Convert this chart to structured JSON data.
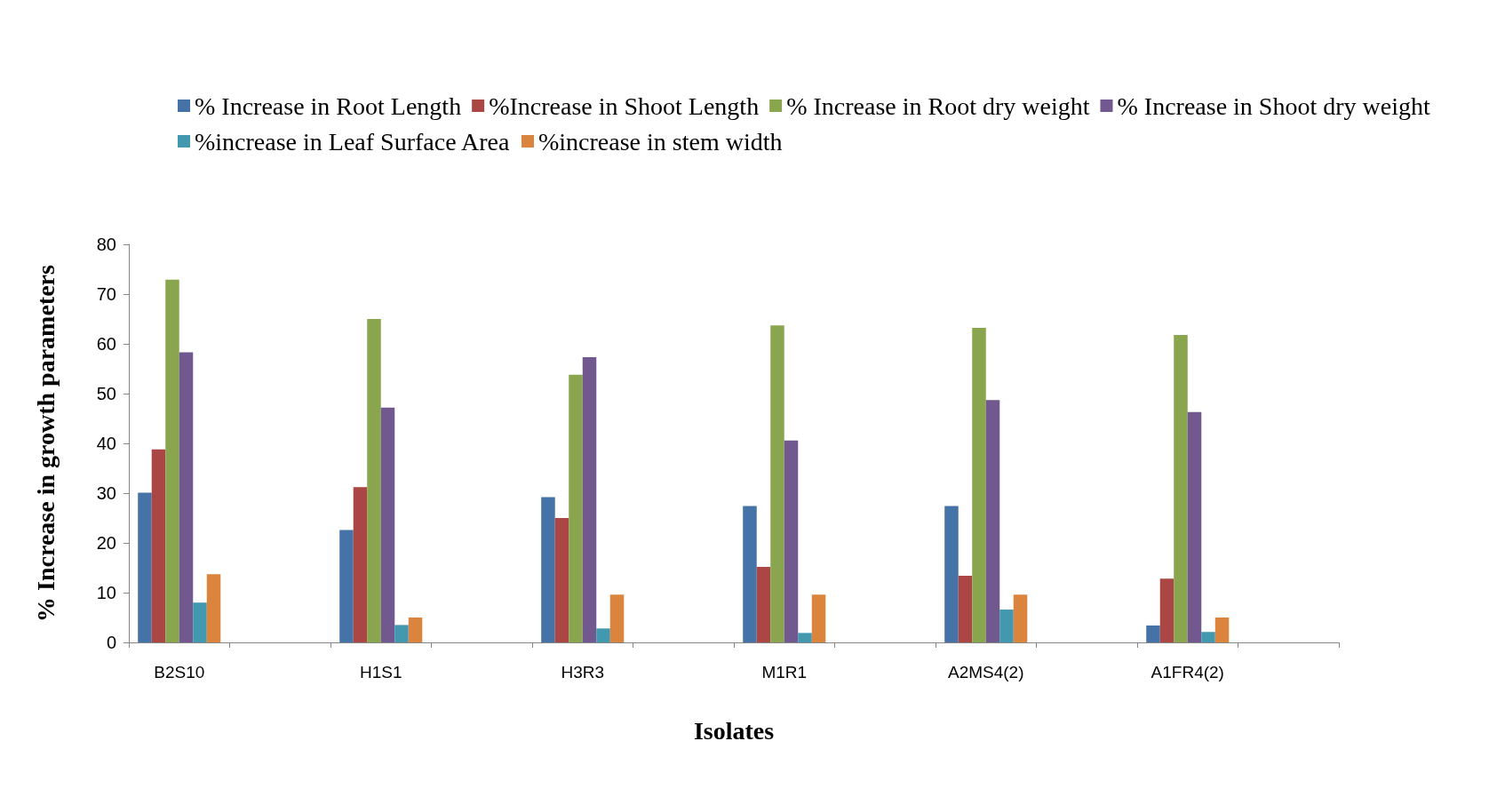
{
  "chart_data": {
    "type": "bar",
    "xlabel": "Isolates",
    "ylabel": "% Increase in growth parameters",
    "categories": [
      "B2S10",
      null,
      "H1S1",
      null,
      "H3R3",
      null,
      "M1R1",
      null,
      "A2MS4(2)",
      null,
      "A1FR4(2)",
      null
    ],
    "series": [
      {
        "name": "% Increase in Root Length",
        "color": "#4572a7",
        "values": [
          30.1,
          null,
          22.6,
          null,
          29.2,
          null,
          27.4,
          null,
          27.4,
          null,
          3.4,
          null
        ]
      },
      {
        "name": "%Increase in Shoot Length",
        "color": "#aa4643",
        "values": [
          38.8,
          null,
          31.2,
          null,
          25,
          null,
          15.2,
          null,
          13.4,
          null,
          12.8,
          null
        ]
      },
      {
        "name": "% Increase in Root dry weight",
        "color": "#89a54e",
        "values": [
          72.9,
          null,
          65,
          null,
          53.8,
          null,
          63.7,
          null,
          63.2,
          null,
          61.8,
          null
        ]
      },
      {
        "name": "% Increase in Shoot dry weight",
        "color": "#71588f",
        "values": [
          58.3,
          null,
          47.2,
          null,
          57.3,
          null,
          40.6,
          null,
          48.7,
          null,
          46.3,
          null
        ]
      },
      {
        "name": "%increase in Leaf Surface Area",
        "color": "#4198af",
        "values": [
          8,
          null,
          3.5,
          null,
          2.8,
          null,
          1.9,
          null,
          6.6,
          null,
          2.1,
          null
        ]
      },
      {
        "name": "%increase in stem width",
        "color": "#db843d",
        "values": [
          13.7,
          null,
          5,
          null,
          9.6,
          null,
          9.6,
          null,
          9.6,
          null,
          5,
          null
        ]
      }
    ],
    "ylim": [
      0,
      80
    ],
    "yticks": [
      0,
      10,
      20,
      30,
      40,
      50,
      60,
      70,
      80
    ],
    "grid": false,
    "legend": "top"
  }
}
